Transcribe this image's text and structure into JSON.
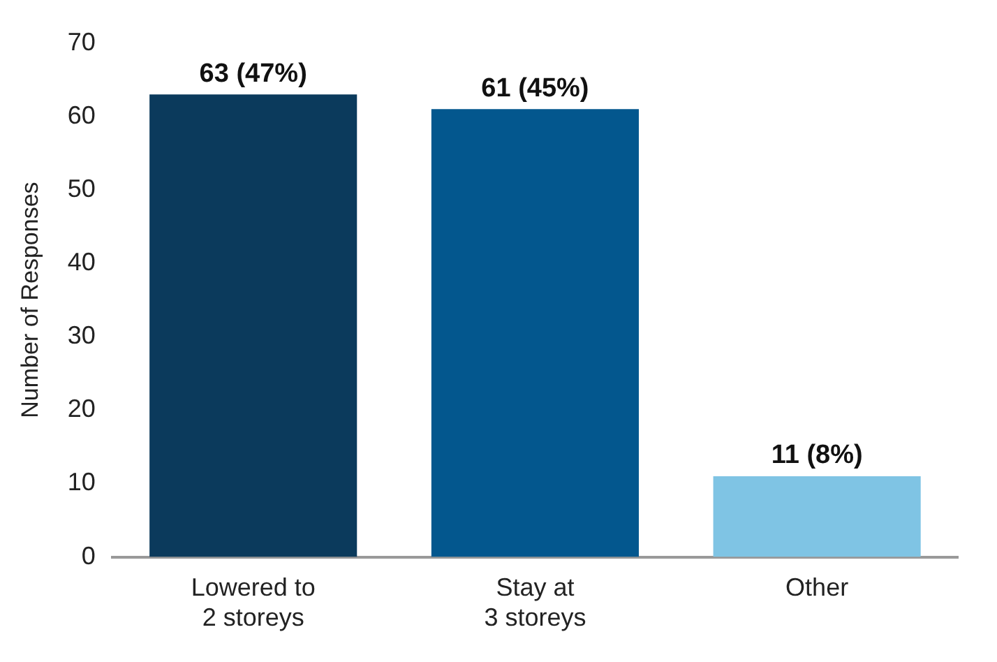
{
  "chart_data": {
    "type": "bar",
    "ylabel": "Number of Responses",
    "categories": [
      "Lowered to\n2 storeys",
      "Stay at\n3 storeys",
      "Other"
    ],
    "values": [
      63,
      61,
      11
    ],
    "colors": [
      "#0b3a5c",
      "#03578e",
      "#7fc4e4"
    ],
    "value_labels": [
      "63 (47%)",
      "61 (45%)",
      "11 (8%)"
    ],
    "ylim": [
      0,
      70
    ],
    "yticks": [
      0,
      10,
      20,
      30,
      40,
      50,
      60,
      70
    ],
    "grid": false,
    "legend": false
  }
}
